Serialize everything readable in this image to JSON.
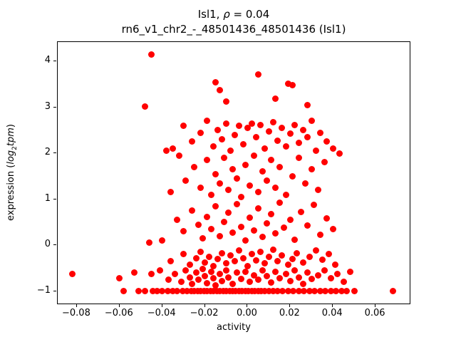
{
  "labels": {
    "title_prefix": "Isl1, ",
    "title_rho": "ρ",
    "title_suffix": " = 0.04",
    "subtitle": "rn6_v1_chr2_-_48501436_48501436 (Isl1)",
    "xlabel": "activity",
    "ylabel_prefix": "expression (",
    "ylabel_log": "log",
    "ylabel_sub": "2",
    "ylabel_tpm": "tpm",
    "ylabel_close": ")"
  },
  "chart_data": {
    "type": "scatter",
    "title": "Isl1, ρ = 0.04",
    "subtitle": "rn6_v1_chr2_-_48501436_48501436 (Isl1)",
    "xlabel": "activity",
    "ylabel": "expression (log2tpm)",
    "marker_color": "#ff0000",
    "grid": false,
    "legend": null,
    "xlim": [
      -0.089,
      0.076
    ],
    "ylim": [
      -1.27,
      4.42
    ],
    "xticks": [
      {
        "v": -0.08,
        "label": "−0.08"
      },
      {
        "v": -0.06,
        "label": "−0.06"
      },
      {
        "v": -0.04,
        "label": "−0.04"
      },
      {
        "v": -0.02,
        "label": "−0.02"
      },
      {
        "v": 0.0,
        "label": "0.00"
      },
      {
        "v": 0.02,
        "label": "0.02"
      },
      {
        "v": 0.04,
        "label": "0.04"
      },
      {
        "v": 0.06,
        "label": "0.06"
      }
    ],
    "yticks": [
      {
        "v": -1,
        "label": "−1"
      },
      {
        "v": 0,
        "label": "0"
      },
      {
        "v": 1,
        "label": "1"
      },
      {
        "v": 2,
        "label": "2"
      },
      {
        "v": 3,
        "label": "3"
      },
      {
        "v": 4,
        "label": "4"
      }
    ],
    "points": [
      [
        -0.058,
        -1
      ],
      [
        -0.051,
        -1
      ],
      [
        -0.048,
        -1
      ],
      [
        -0.0445,
        -1
      ],
      [
        -0.0425,
        -1
      ],
      [
        -0.04,
        -1
      ],
      [
        -0.0375,
        -1
      ],
      [
        -0.035,
        -1
      ],
      [
        -0.033,
        -1
      ],
      [
        -0.0305,
        -1
      ],
      [
        -0.0285,
        -1
      ],
      [
        -0.0265,
        -1
      ],
      [
        -0.025,
        -1
      ],
      [
        -0.0235,
        -1
      ],
      [
        -0.022,
        -1
      ],
      [
        -0.0205,
        -1
      ],
      [
        -0.019,
        -1
      ],
      [
        -0.0175,
        -1
      ],
      [
        -0.016,
        -1
      ],
      [
        -0.0145,
        -1
      ],
      [
        -0.013,
        -1
      ],
      [
        -0.0115,
        -1
      ],
      [
        -0.01,
        -1
      ],
      [
        -0.0085,
        -1
      ],
      [
        -0.007,
        -1
      ],
      [
        -0.0055,
        -1
      ],
      [
        -0.004,
        -1
      ],
      [
        -0.0025,
        -1
      ],
      [
        -0.001,
        -1
      ],
      [
        0.0005,
        -1
      ],
      [
        0.002,
        -1
      ],
      [
        0.0035,
        -1
      ],
      [
        0.005,
        -1
      ],
      [
        0.0065,
        -1
      ],
      [
        0.008,
        -1
      ],
      [
        0.01,
        -1
      ],
      [
        0.012,
        -1
      ],
      [
        0.014,
        -1
      ],
      [
        0.0165,
        -1
      ],
      [
        0.019,
        -1
      ],
      [
        0.0215,
        -1
      ],
      [
        0.024,
        -1
      ],
      [
        0.0265,
        -1
      ],
      [
        0.029,
        -1
      ],
      [
        0.0315,
        -1
      ],
      [
        0.034,
        -1
      ],
      [
        0.0365,
        -1
      ],
      [
        0.039,
        -1
      ],
      [
        0.0415,
        -1
      ],
      [
        0.044,
        -1
      ],
      [
        0.0465,
        -1
      ],
      [
        0.05,
        -1
      ],
      [
        0.068,
        -1
      ],
      [
        -0.082,
        -0.62
      ],
      [
        -0.06,
        -0.72
      ],
      [
        -0.053,
        -0.6
      ],
      [
        -0.045,
        -0.62
      ],
      [
        -0.041,
        -0.55
      ],
      [
        -0.037,
        -0.75
      ],
      [
        -0.034,
        -0.62
      ],
      [
        -0.031,
        -0.8
      ],
      [
        -0.029,
        -0.55
      ],
      [
        -0.027,
        -0.7
      ],
      [
        -0.026,
        -0.85
      ],
      [
        -0.024,
        -0.6
      ],
      [
        -0.023,
        -0.75
      ],
      [
        -0.021,
        -0.52
      ],
      [
        -0.02,
        -0.68
      ],
      [
        -0.019,
        -0.83
      ],
      [
        -0.017,
        -0.58
      ],
      [
        -0.016,
        -0.72
      ],
      [
        -0.015,
        -0.88
      ],
      [
        -0.013,
        -0.62
      ],
      [
        -0.012,
        -0.78
      ],
      [
        -0.01,
        -0.55
      ],
      [
        -0.009,
        -0.7
      ],
      [
        -0.007,
        -0.85
      ],
      [
        -0.005,
        -0.6
      ],
      [
        -0.003,
        -0.74
      ],
      [
        -0.001,
        -0.58
      ],
      [
        0.001,
        -0.8
      ],
      [
        0.003,
        -0.65
      ],
      [
        0.005,
        -0.75
      ],
      [
        0.007,
        -0.55
      ],
      [
        0.009,
        -0.68
      ],
      [
        0.011,
        -0.82
      ],
      [
        0.013,
        -0.58
      ],
      [
        0.015,
        -0.72
      ],
      [
        0.018,
        -0.62
      ],
      [
        0.02,
        -0.78
      ],
      [
        0.022,
        -0.55
      ],
      [
        0.024,
        -0.7
      ],
      [
        0.026,
        -0.85
      ],
      [
        0.028,
        -0.6
      ],
      [
        0.03,
        -0.74
      ],
      [
        0.033,
        -0.65
      ],
      [
        0.036,
        -0.55
      ],
      [
        0.039,
        -0.72
      ],
      [
        0.042,
        -0.62
      ],
      [
        0.045,
        -0.8
      ],
      [
        0.048,
        -0.58
      ],
      [
        -0.036,
        -0.35
      ],
      [
        -0.03,
        -0.2
      ],
      [
        -0.027,
        -0.42
      ],
      [
        -0.024,
        -0.28
      ],
      [
        -0.022,
        -0.15
      ],
      [
        -0.02,
        -0.38
      ],
      [
        -0.018,
        -0.25
      ],
      [
        -0.016,
        -0.45
      ],
      [
        -0.014,
        -0.3
      ],
      [
        -0.012,
        -0.18
      ],
      [
        -0.01,
        -0.4
      ],
      [
        -0.008,
        -0.22
      ],
      [
        -0.006,
        -0.35
      ],
      [
        -0.004,
        -0.12
      ],
      [
        -0.002,
        -0.28
      ],
      [
        0.0,
        -0.45
      ],
      [
        0.002,
        -0.2
      ],
      [
        0.004,
        -0.33
      ],
      [
        0.006,
        -0.15
      ],
      [
        0.008,
        -0.4
      ],
      [
        0.01,
        -0.25
      ],
      [
        0.012,
        -0.1
      ],
      [
        0.014,
        -0.35
      ],
      [
        0.016,
        -0.22
      ],
      [
        0.019,
        -0.42
      ],
      [
        0.021,
        -0.3
      ],
      [
        0.023,
        -0.18
      ],
      [
        0.026,
        -0.38
      ],
      [
        0.029,
        -0.25
      ],
      [
        0.032,
        -0.12
      ],
      [
        0.035,
        -0.32
      ],
      [
        0.038,
        -0.2
      ],
      [
        0.041,
        -0.42
      ],
      [
        -0.046,
        0.05
      ],
      [
        -0.04,
        0.1
      ],
      [
        -0.033,
        0.55
      ],
      [
        -0.03,
        0.3
      ],
      [
        -0.026,
        0.75
      ],
      [
        -0.023,
        0.45
      ],
      [
        -0.021,
        0.15
      ],
      [
        -0.019,
        0.62
      ],
      [
        -0.017,
        0.35
      ],
      [
        -0.015,
        0.85
      ],
      [
        -0.013,
        0.2
      ],
      [
        -0.011,
        0.5
      ],
      [
        -0.009,
        0.7
      ],
      [
        -0.007,
        0.28
      ],
      [
        -0.005,
        0.9
      ],
      [
        -0.003,
        0.4
      ],
      [
        -0.001,
        0.1
      ],
      [
        0.001,
        0.6
      ],
      [
        0.003,
        0.32
      ],
      [
        0.005,
        0.8
      ],
      [
        0.007,
        0.18
      ],
      [
        0.009,
        0.48
      ],
      [
        0.011,
        0.68
      ],
      [
        0.013,
        0.25
      ],
      [
        0.015,
        0.92
      ],
      [
        0.017,
        0.38
      ],
      [
        0.02,
        0.55
      ],
      [
        0.022,
        0.12
      ],
      [
        0.025,
        0.72
      ],
      [
        0.028,
        0.42
      ],
      [
        0.031,
        0.88
      ],
      [
        0.034,
        0.22
      ],
      [
        0.037,
        0.58
      ],
      [
        0.04,
        0.35
      ],
      [
        -0.036,
        1.15
      ],
      [
        -0.032,
        1.95
      ],
      [
        -0.029,
        1.4
      ],
      [
        -0.025,
        1.7
      ],
      [
        -0.022,
        1.25
      ],
      [
        -0.019,
        1.85
      ],
      [
        -0.017,
        1.1
      ],
      [
        -0.015,
        1.55
      ],
      [
        -0.013,
        1.35
      ],
      [
        -0.011,
        1.9
      ],
      [
        -0.009,
        1.2
      ],
      [
        -0.007,
        1.65
      ],
      [
        -0.005,
        1.45
      ],
      [
        -0.003,
        1.05
      ],
      [
        -0.001,
        1.75
      ],
      [
        0.001,
        1.3
      ],
      [
        0.003,
        1.95
      ],
      [
        0.005,
        1.15
      ],
      [
        0.007,
        1.6
      ],
      [
        0.009,
        1.4
      ],
      [
        0.011,
        1.85
      ],
      [
        0.013,
        1.25
      ],
      [
        0.015,
        1.7
      ],
      [
        0.018,
        1.1
      ],
      [
        0.021,
        1.5
      ],
      [
        0.024,
        1.9
      ],
      [
        0.027,
        1.35
      ],
      [
        0.03,
        1.65
      ],
      [
        0.033,
        1.2
      ],
      [
        0.036,
        1.8
      ],
      [
        -0.038,
        2.05
      ],
      [
        -0.035,
        2.1
      ],
      [
        -0.03,
        2.6
      ],
      [
        -0.026,
        2.25
      ],
      [
        -0.022,
        2.45
      ],
      [
        -0.019,
        2.7
      ],
      [
        -0.016,
        2.15
      ],
      [
        -0.014,
        2.5
      ],
      [
        -0.012,
        2.3
      ],
      [
        -0.01,
        2.65
      ],
      [
        -0.008,
        2.05
      ],
      [
        -0.006,
        2.4
      ],
      [
        -0.004,
        2.6
      ],
      [
        -0.002,
        2.2
      ],
      [
        0.0,
        2.55
      ],
      [
        0.002,
        2.65
      ],
      [
        0.004,
        2.35
      ],
      [
        0.006,
        2.62
      ],
      [
        0.008,
        2.1
      ],
      [
        0.01,
        2.48
      ],
      [
        0.012,
        2.68
      ],
      [
        0.014,
        2.28
      ],
      [
        0.016,
        2.55
      ],
      [
        0.018,
        2.15
      ],
      [
        0.02,
        2.42
      ],
      [
        0.022,
        2.62
      ],
      [
        0.024,
        2.22
      ],
      [
        0.026,
        2.5
      ],
      [
        0.028,
        2.35
      ],
      [
        0.03,
        2.7
      ],
      [
        0.032,
        2.05
      ],
      [
        0.034,
        2.45
      ],
      [
        0.037,
        2.25
      ],
      [
        0.04,
        2.1
      ],
      [
        0.043,
        2.0
      ],
      [
        -0.045,
        4.15
      ],
      [
        -0.048,
        3.02
      ],
      [
        0.005,
        3.72
      ],
      [
        -0.015,
        3.55
      ],
      [
        -0.013,
        3.38
      ],
      [
        0.019,
        3.52
      ],
      [
        0.021,
        3.48
      ],
      [
        -0.01,
        3.12
      ],
      [
        0.013,
        3.18
      ],
      [
        0.028,
        3.05
      ]
    ]
  }
}
